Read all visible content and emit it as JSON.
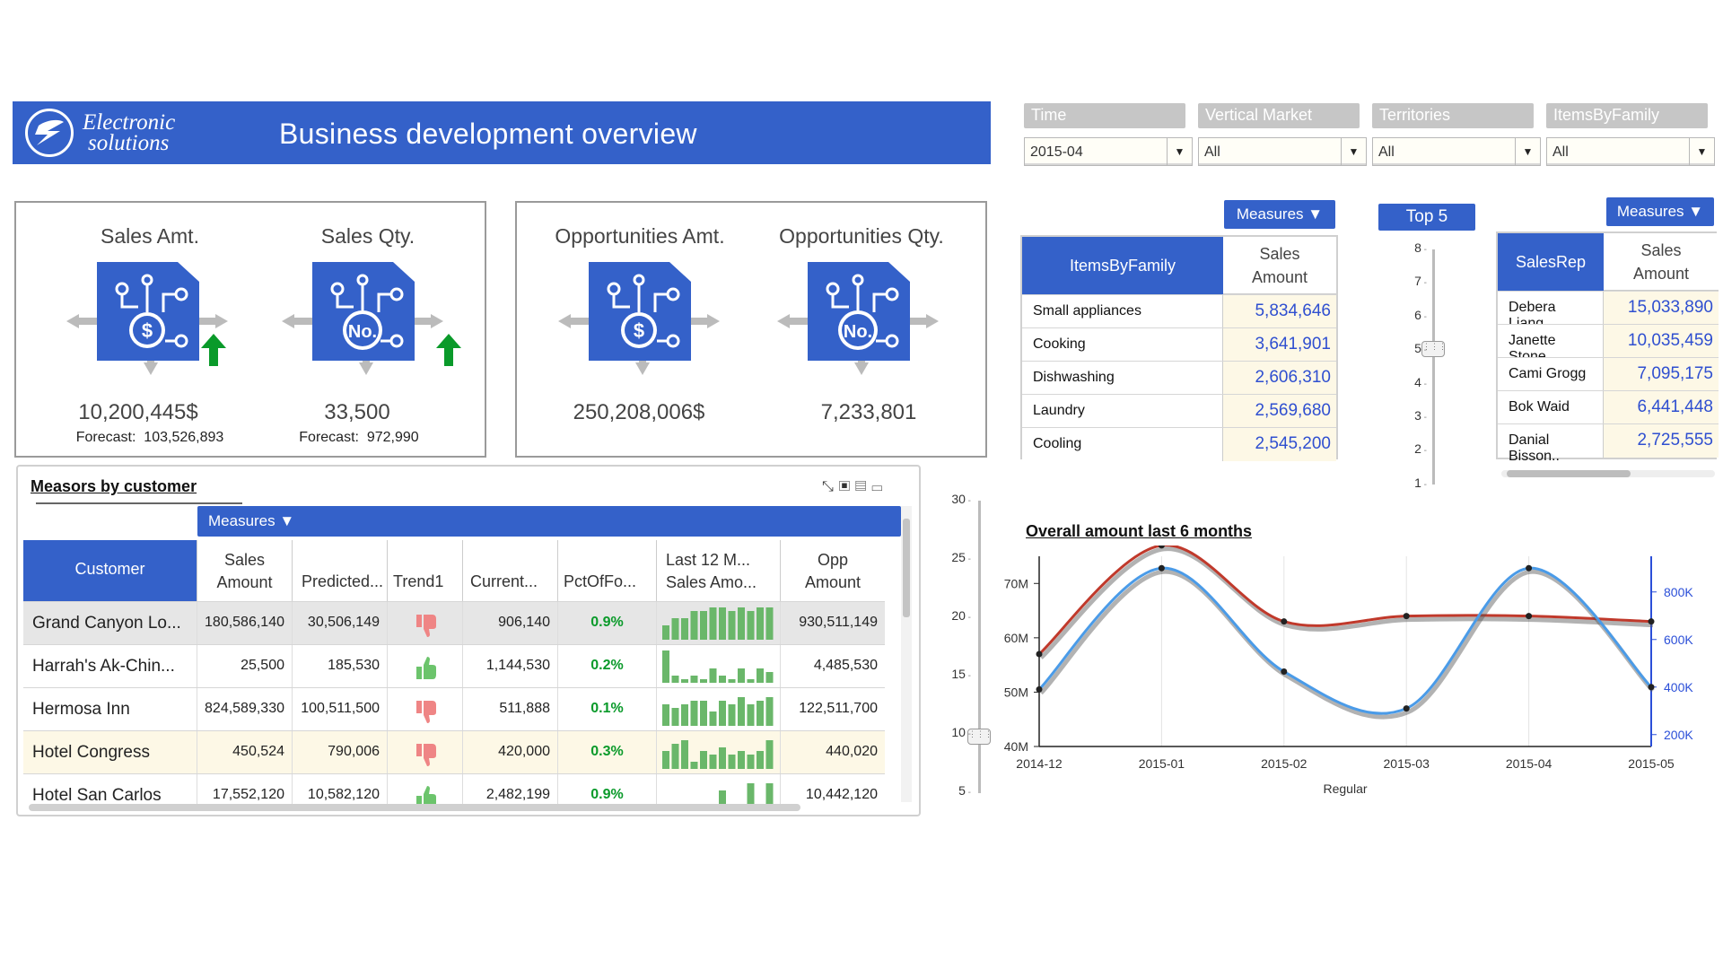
{
  "header": {
    "logo_line1": "Electronic",
    "logo_line2": "solutions",
    "title": "Business development overview",
    "color": "#3461c9"
  },
  "filters": [
    {
      "label": "Time",
      "value": "2015-04"
    },
    {
      "label": "Vertical Market",
      "value": "All"
    },
    {
      "label": "Territories",
      "value": "All"
    },
    {
      "label": "ItemsByFamily",
      "value": "All"
    }
  ],
  "kpis": {
    "sales_amt": {
      "title": "Sales Amt.",
      "icon": "dollar-icon",
      "value": "10,200,445$",
      "forecast_label": "Forecast:",
      "forecast": "103,526,893",
      "trend": "up-arrow-icon"
    },
    "sales_qty": {
      "title": "Sales Qty.",
      "icon": "number-icon",
      "value": "33,500",
      "forecast_label": "Forecast:",
      "forecast": "972,990",
      "trend": "up-arrow-icon"
    },
    "opp_amt": {
      "title": "Opportunities Amt.",
      "icon": "dollar-icon",
      "value": "250,208,006$"
    },
    "opp_qty": {
      "title": "Opportunities Qty.",
      "icon": "number-icon",
      "value": "7,233,801"
    }
  },
  "items_table": {
    "measures_label": "Measures",
    "col1": "ItemsByFamily",
    "col2": "Sales Amount",
    "rows": [
      {
        "name": "Small appliances",
        "value": "5,834,646"
      },
      {
        "name": "Cooking",
        "value": "3,641,901"
      },
      {
        "name": "Dishwashing",
        "value": "2,606,310"
      },
      {
        "name": "Laundry",
        "value": "2,569,680"
      },
      {
        "name": "Cooling",
        "value": "2,545,200"
      }
    ]
  },
  "top_slider": {
    "label": "Top 5",
    "ticks": [
      "8",
      "7",
      "6",
      "5",
      "4",
      "3",
      "2",
      "1"
    ],
    "selected": 5
  },
  "salesrep_table": {
    "measures_label": "Measures",
    "col1": "SalesRep",
    "col2": "Sales Amount",
    "rows": [
      {
        "name": "Debera Liang",
        "value": "15,033,890"
      },
      {
        "name": "Janette Stone..",
        "value": "10,035,459"
      },
      {
        "name": "Cami Grogg",
        "value": "7,095,175"
      },
      {
        "name": "Bok Waid",
        "value": "6,441,448"
      },
      {
        "name": "Danial Bisson..",
        "value": "2,725,555"
      }
    ]
  },
  "customer_grid": {
    "title": "Measors by customer",
    "measures_label": "Measures",
    "columns": {
      "customer": "Customer",
      "sales_amount": "Sales Amount",
      "predicted": "Predicted...",
      "trend": "Trend1",
      "current": "Current...",
      "pct": "PctOfFo...",
      "last12": "Last 12 M... Sales Amo...",
      "opp": "Opp Amount"
    },
    "rows": [
      {
        "customer": "Grand Canyon Lo...",
        "sales": "180,586,140",
        "predicted": "30,506,149",
        "trend": "down",
        "current": "906,140",
        "pct": "0.9%",
        "spark": [
          4,
          6,
          6,
          8,
          8,
          9,
          9,
          8,
          9,
          8,
          9,
          9
        ],
        "opp": "930,511,149"
      },
      {
        "customer": "Harrah's Ak-Chin...",
        "sales": "25,500",
        "predicted": "185,530",
        "trend": "up",
        "current": "1,144,530",
        "pct": "0.2%",
        "spark": [
          9,
          2,
          1,
          2,
          1,
          4,
          2,
          1,
          4,
          1,
          4,
          3
        ],
        "opp": "4,485,530"
      },
      {
        "customer": "Hermosa Inn",
        "sales": "824,589,330",
        "predicted": "100,511,500",
        "trend": "down",
        "current": "511,888",
        "pct": "0.1%",
        "spark": [
          6,
          5,
          6,
          7,
          7,
          4,
          7,
          6,
          8,
          6,
          7,
          8
        ],
        "opp": "122,511,700"
      },
      {
        "customer": "Hotel Congress",
        "sales": "450,524",
        "predicted": "790,006",
        "trend": "down",
        "current": "420,000",
        "pct": "0.3%",
        "spark": [
          5,
          7,
          8,
          2,
          5,
          4,
          6,
          4,
          5,
          4,
          5,
          8
        ],
        "opp": "440,020"
      },
      {
        "customer": "Hotel San Carlos",
        "sales": "17,552,120",
        "predicted": "10,582,120",
        "trend": "up",
        "current": "2,482,199",
        "pct": "0.9%",
        "spark": [
          0,
          0,
          0,
          0,
          0,
          0,
          6,
          0,
          0,
          8,
          0,
          8
        ],
        "opp": "10,442,120"
      }
    ]
  },
  "vertical_slider": {
    "ticks": [
      "30",
      "25",
      "20",
      "15",
      "10",
      "5"
    ],
    "value": 10
  },
  "chart_data": {
    "type": "line",
    "title": "Overall amount last 6 months",
    "xlabel": "Regular",
    "x": [
      "2014-12",
      "2015-01",
      "2015-02",
      "2015-03",
      "2015-04",
      "2015-05"
    ],
    "y_left_ticks": [
      "70M",
      "60M",
      "50M",
      "40M"
    ],
    "y_right_ticks": [
      "800K",
      "600K",
      "400K",
      "200K"
    ],
    "ylim_left": [
      40,
      75
    ],
    "ylim_right": [
      150,
      950
    ],
    "series": [
      {
        "axis": "left",
        "color": "#c0392b",
        "values": [
          57,
          77,
          63,
          64,
          64,
          63
        ]
      },
      {
        "axis": "right",
        "color": "#4a9be8",
        "values": [
          390,
          900,
          465,
          310,
          900,
          400
        ]
      }
    ]
  }
}
